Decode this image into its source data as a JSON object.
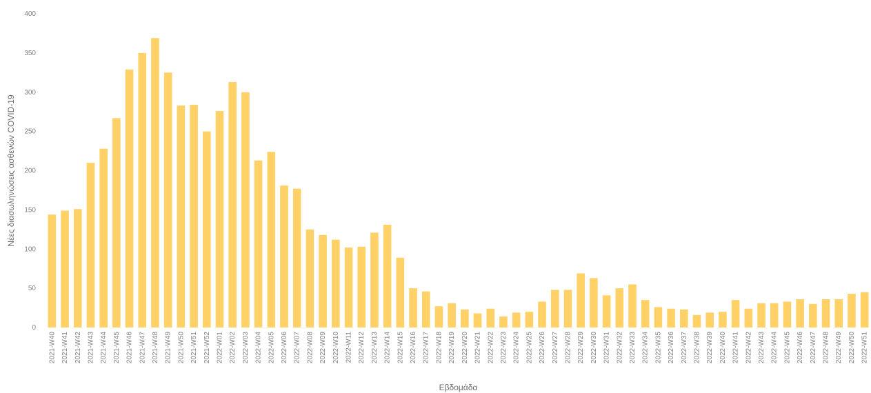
{
  "chart_data": {
    "type": "bar",
    "xlabel": "Εβδομάδα",
    "ylabel": "Νέες διασωληνώσεις ασθενών COVID-19",
    "ylim": [
      0,
      400
    ],
    "yticks": [
      0,
      50,
      100,
      150,
      200,
      250,
      300,
      350,
      400
    ],
    "grid": false,
    "bar_color": "#FFD166",
    "categories": [
      "2021-W40",
      "2021-W41",
      "2021-W42",
      "2021-W43",
      "2021-W44",
      "2021-W45",
      "2021-W46",
      "2021-W47",
      "2021-W48",
      "2021-W49",
      "2021-W50",
      "2021-W51",
      "2021-W52",
      "2022-W01",
      "2022-W02",
      "2022-W03",
      "2022-W04",
      "2022-W05",
      "2022-W06",
      "2022-W07",
      "2022-W08",
      "2022-W09",
      "2022-W10",
      "2022-W11",
      "2022-W12",
      "2022-W13",
      "2022-W14",
      "2022-W15",
      "2022-W16",
      "2022-W17",
      "2022-W18",
      "2022-W19",
      "2022-W20",
      "2022-W21",
      "2022-W22",
      "2022-W23",
      "2022-W24",
      "2022-W25",
      "2022-W26",
      "2022-W27",
      "2022-W28",
      "2022-W29",
      "2022-W30",
      "2022-W31",
      "2022-W32",
      "2022-W33",
      "2022-W34",
      "2022-W35",
      "2022-W36",
      "2022-W37",
      "2022-W38",
      "2022-W39",
      "2022-W40",
      "2022-W41",
      "2022-W42",
      "2022-W43",
      "2022-W44",
      "2022-W45",
      "2022-W46",
      "2022-W47",
      "2022-W48",
      "2022-W49",
      "2022-W50",
      "2022-W51"
    ],
    "values": [
      144,
      149,
      151,
      210,
      228,
      267,
      329,
      350,
      369,
      325,
      283,
      284,
      250,
      276,
      313,
      300,
      213,
      224,
      181,
      177,
      125,
      118,
      112,
      102,
      103,
      121,
      131,
      89,
      50,
      46,
      27,
      31,
      23,
      18,
      24,
      14,
      19,
      20,
      33,
      48,
      48,
      69,
      63,
      41,
      50,
      55,
      35,
      26,
      24,
      23,
      16,
      19,
      20,
      35,
      24,
      31,
      31,
      33,
      36,
      30,
      36,
      36,
      43,
      45
    ]
  }
}
